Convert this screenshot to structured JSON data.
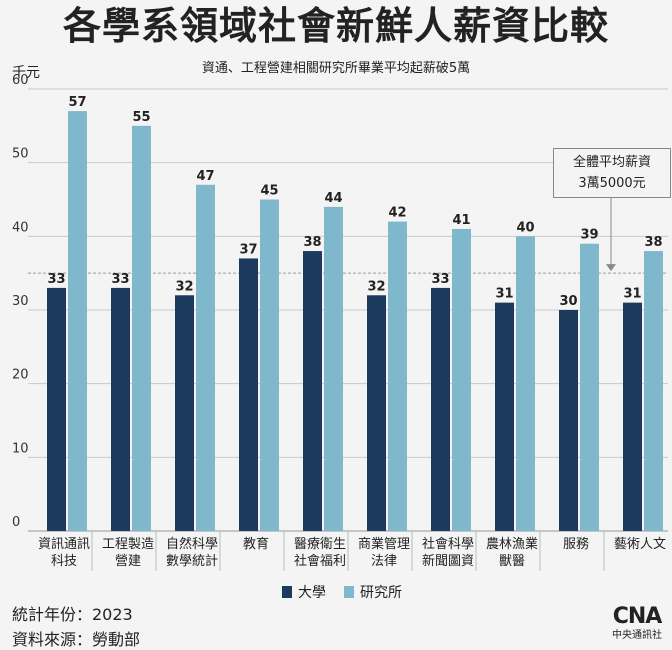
{
  "chart_data": {
    "type": "bar",
    "title": "各學系領域社會新鮮人薪資比較",
    "subtitle": "資通、工程營建相關研究所畢業平均起薪破5萬",
    "ylabel": "千元",
    "ylim": [
      0,
      60
    ],
    "yticks": [
      "0",
      "10",
      "20",
      "30",
      "40",
      "50",
      "60"
    ],
    "grid": true,
    "legend_position": "bottom",
    "categories": [
      [
        "資訊通訊",
        "科技"
      ],
      [
        "工程製造",
        "營建"
      ],
      [
        "自然科學",
        "數學統計"
      ],
      [
        "教育"
      ],
      [
        "醫療衛生",
        "社會福利"
      ],
      [
        "商業管理",
        "法律"
      ],
      [
        "社會科學",
        "新聞圖資"
      ],
      [
        "農林漁業",
        "獸醫"
      ],
      [
        "服務"
      ],
      [
        "藝術人文"
      ]
    ],
    "series": [
      {
        "name": "大學",
        "color": "#1b3a5c",
        "values": [
          33,
          33,
          32,
          37,
          38,
          32,
          33,
          31,
          30,
          31
        ]
      },
      {
        "name": "研究所",
        "color": "#7fb8cc",
        "values": [
          57,
          55,
          47,
          45,
          44,
          42,
          41,
          40,
          39,
          38
        ]
      }
    ],
    "reference_line": {
      "value": 35,
      "label_lines": [
        "全體平均薪資",
        "3萬5000元"
      ]
    }
  },
  "footer": {
    "year": "統計年份：2023",
    "source": "資料來源：勞動部"
  },
  "logo": {
    "mark": "CNA",
    "text": "中央通訊社"
  }
}
